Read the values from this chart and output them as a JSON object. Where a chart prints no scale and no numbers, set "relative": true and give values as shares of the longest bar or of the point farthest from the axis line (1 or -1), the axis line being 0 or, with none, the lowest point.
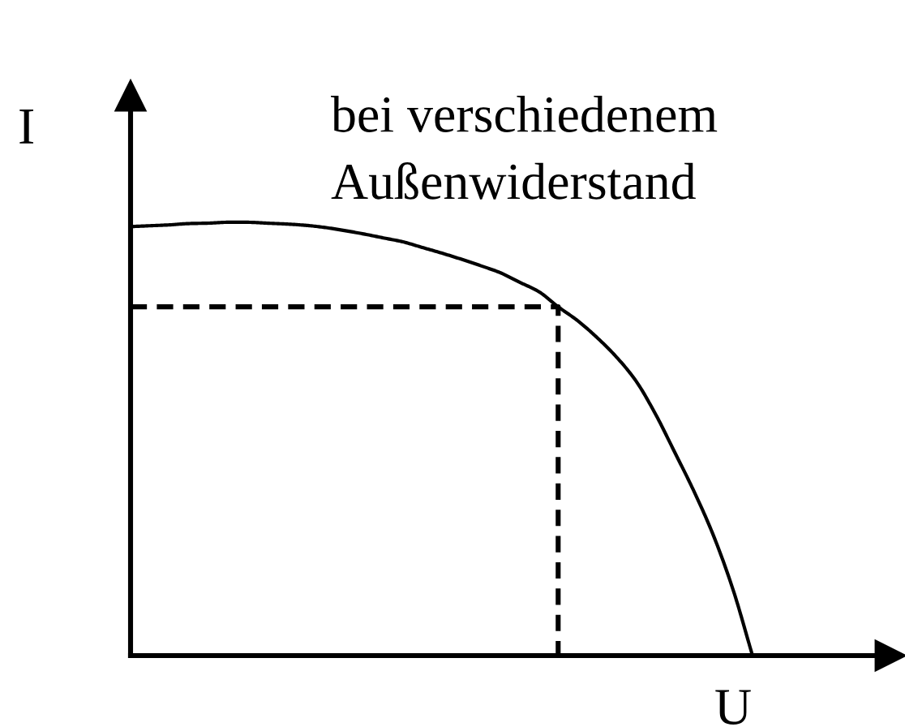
{
  "chart_data": {
    "type": "line",
    "relative": true,
    "xlabel": "U",
    "ylabel": "I",
    "annotations": [
      "bei verschiedenem Außenwiderstand"
    ],
    "line_style": "solid",
    "categories": [
      null,
      null,
      null,
      null,
      null,
      null,
      null,
      null,
      null,
      null,
      null,
      null,
      null,
      null,
      null,
      null,
      null,
      null,
      null,
      null,
      null,
      null,
      null,
      null,
      null,
      null,
      null,
      null,
      null,
      null,
      null,
      null,
      null
    ],
    "series": [
      {
        "color": "#000000",
        "values": [
          0.99,
          0.992,
          0.994,
          0.997,
          0.998,
          1.0,
          1.0,
          0.998,
          0.996,
          0.993,
          0.988,
          0.981,
          0.973,
          0.964,
          0.955,
          0.942,
          0.929,
          0.915,
          0.9,
          0.884,
          0.862,
          0.84,
          0.805,
          0.773,
          0.734,
          0.689,
          0.634,
          0.558,
          0.469,
          0.378,
          0.276,
          0.152,
          0
        ]
      },
      {
        "type": "step",
        "color": "#000000",
        "line_style": "dashed",
        "values": [
          0.805,
          0.805,
          0.805,
          0.805,
          0.805,
          0.805,
          0.805,
          0.805,
          0.805,
          0.805,
          0.805,
          0.805,
          0.805,
          0.805,
          0.805,
          0.805,
          0.805,
          0.805,
          0.805,
          0.805,
          0.805,
          0.805,
          0,
          null,
          null,
          null,
          null,
          null,
          null,
          null,
          null,
          null,
          null
        ]
      }
    ]
  }
}
